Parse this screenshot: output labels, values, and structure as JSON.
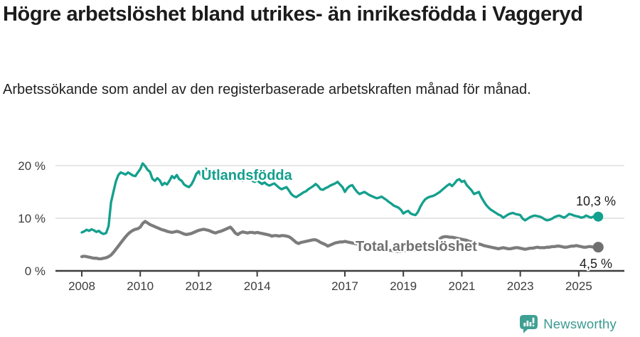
{
  "header": {
    "title": "Högre arbetslöshet bland utrikes- än inrikesfödda i Vaggeryd",
    "subtitle": "Arbetssökande som andel av den registerbaserade arbetskraften månad för månad."
  },
  "chart_data": {
    "type": "line",
    "title": "Högre arbetslöshet bland utrikes- än inrikesfödda i Vaggeryd",
    "xlabel": "",
    "ylabel": "",
    "xlim": [
      2007.1,
      2026.56
    ],
    "ylim": [
      0,
      21.6
    ],
    "grid": "horizontal",
    "legend_position": "inline-labels",
    "y_ticks": [
      {
        "value": 0,
        "label": "0 %"
      },
      {
        "value": 10,
        "label": "10 %"
      },
      {
        "value": 20,
        "label": "20 %"
      }
    ],
    "x_ticks": [
      {
        "value": 2008,
        "label": "2008"
      },
      {
        "value": 2010,
        "label": "2010"
      },
      {
        "value": 2012,
        "label": "2012"
      },
      {
        "value": 2014,
        "label": "2014"
      },
      {
        "value": 2017,
        "label": "2017"
      },
      {
        "value": 2019,
        "label": "2019"
      },
      {
        "value": 2021,
        "label": "2021"
      },
      {
        "value": 2023,
        "label": "2023"
      },
      {
        "value": 2025,
        "label": "2025"
      }
    ],
    "colors": {
      "grid": "#d9d9d9",
      "axis": "#3d3d3d",
      "tick_text": "#3c3c3c",
      "utlandsfodda": "#14a08e",
      "total": "#7c7c7c",
      "total_dot": "#6f6f6f",
      "end_label_text": "#1d1d1d"
    },
    "series": [
      {
        "name": "Utlandsfödda",
        "color": "#14a08e",
        "end_label": "10,3 %",
        "end_value": 10.3,
        "x_start": 2008,
        "x_step_months": 1,
        "values": [
          7.3,
          7.5,
          7.8,
          7.6,
          7.9,
          7.7,
          7.4,
          7.6,
          7.2,
          7.0,
          7.2,
          8.5,
          13.0,
          15.0,
          17.0,
          18.2,
          18.7,
          18.5,
          18.3,
          18.7,
          18.4,
          18.1,
          18.0,
          18.7,
          19.3,
          20.4,
          19.9,
          19.2,
          18.8,
          17.5,
          17.1,
          17.6,
          17.2,
          16.3,
          16.7,
          16.4,
          17.1,
          18.0,
          17.6,
          18.2,
          17.4,
          17.1,
          16.4,
          16.1,
          15.9,
          16.4,
          17.3,
          18.4,
          18.9,
          18.1,
          18.5,
          19.4,
          19.0,
          18.5,
          18.2,
          17.9,
          17.5,
          17.7,
          17.3,
          17.6,
          17.9,
          17.5,
          17.2,
          17.5,
          17.8,
          17.4,
          17.1,
          17.4,
          17.7,
          17.4,
          17.1,
          16.9,
          17.2,
          16.8,
          16.5,
          16.8,
          16.4,
          16.2,
          16.4,
          16.6,
          16.2,
          15.8,
          15.5,
          15.7,
          15.9,
          15.3,
          14.6,
          14.2,
          14.0,
          14.3,
          14.6,
          14.9,
          15.1,
          15.5,
          15.8,
          16.1,
          16.5,
          16.1,
          15.5,
          15.4,
          15.7,
          15.9,
          16.2,
          16.4,
          16.6,
          16.9,
          16.4,
          15.9,
          15.0,
          15.7,
          16.1,
          16.3,
          15.6,
          15.0,
          14.6,
          14.8,
          15.0,
          14.7,
          14.4,
          14.2,
          14.0,
          13.8,
          13.9,
          14.1,
          13.8,
          13.5,
          13.1,
          12.8,
          12.4,
          12.2,
          12.0,
          11.6,
          10.9,
          11.2,
          11.4,
          10.9,
          10.7,
          10.6,
          11.2,
          12.2,
          13.0,
          13.6,
          13.9,
          14.1,
          14.2,
          14.4,
          14.7,
          15.0,
          15.4,
          15.8,
          16.2,
          16.5,
          16.1,
          16.6,
          17.2,
          17.4,
          16.9,
          17.1,
          16.3,
          15.8,
          15.3,
          14.6,
          14.8,
          15.0,
          14.0,
          13.2,
          12.5,
          12.0,
          11.6,
          11.3,
          11.0,
          10.7,
          10.5,
          10.1,
          10.4,
          10.7,
          10.9,
          11.0,
          10.8,
          10.7,
          10.6,
          9.9,
          9.6,
          9.9,
          10.2,
          10.4,
          10.5,
          10.4,
          10.3,
          10.1,
          9.8,
          9.6,
          9.7,
          9.9,
          10.2,
          10.4,
          10.5,
          10.3,
          10.1,
          10.4,
          10.8,
          10.7,
          10.5,
          10.4,
          10.3,
          10.1,
          10.2,
          10.5,
          10.3,
          10.1,
          10.3,
          10.4,
          10.3
        ]
      },
      {
        "name": "Total arbetslöshet",
        "color": "#7c7c7c",
        "end_label": "4,5 %",
        "end_value": 4.5,
        "x_start": 2008,
        "x_step_months": 1,
        "values": [
          2.7,
          2.8,
          2.7,
          2.6,
          2.5,
          2.4,
          2.4,
          2.3,
          2.3,
          2.4,
          2.5,
          2.7,
          3.0,
          3.5,
          4.1,
          4.7,
          5.3,
          5.9,
          6.5,
          7.0,
          7.4,
          7.7,
          7.9,
          8.0,
          8.3,
          9.0,
          9.4,
          9.1,
          8.8,
          8.6,
          8.4,
          8.2,
          8.0,
          7.8,
          7.7,
          7.5,
          7.4,
          7.3,
          7.4,
          7.5,
          7.4,
          7.2,
          7.0,
          6.9,
          7.0,
          7.1,
          7.3,
          7.5,
          7.7,
          7.8,
          7.9,
          7.8,
          7.7,
          7.5,
          7.3,
          7.2,
          7.4,
          7.5,
          7.7,
          7.9,
          8.1,
          8.3,
          7.8,
          7.2,
          6.9,
          7.2,
          7.4,
          7.3,
          7.2,
          7.3,
          7.3,
          7.2,
          7.3,
          7.2,
          7.1,
          7.0,
          6.9,
          6.8,
          6.6,
          6.7,
          6.7,
          6.6,
          6.7,
          6.7,
          6.6,
          6.5,
          6.2,
          5.8,
          5.4,
          5.2,
          5.4,
          5.5,
          5.6,
          5.7,
          5.8,
          5.9,
          5.9,
          5.7,
          5.4,
          5.2,
          5.0,
          4.7,
          4.9,
          5.1,
          5.3,
          5.4,
          5.5,
          5.5,
          5.6,
          5.5,
          5.4,
          5.3,
          5.2,
          5.1,
          5.0,
          4.9,
          4.8,
          4.7,
          4.6,
          4.5,
          4.4,
          4.4,
          4.3,
          4.2,
          4.1,
          4.0,
          3.9,
          3.9,
          3.8,
          3.7,
          3.7,
          3.7,
          3.8,
          3.8,
          3.9,
          3.9,
          3.9,
          4.0,
          4.0,
          4.1,
          4.2,
          4.3,
          4.4,
          4.6,
          4.8,
          5.2,
          5.7,
          6.1,
          6.4,
          6.5,
          6.5,
          6.4,
          6.4,
          6.3,
          6.2,
          6.1,
          6.0,
          5.9,
          5.8,
          5.6,
          5.5,
          5.4,
          5.2,
          5.1,
          5.0,
          4.8,
          4.7,
          4.6,
          4.5,
          4.4,
          4.3,
          4.2,
          4.3,
          4.4,
          4.3,
          4.2,
          4.2,
          4.3,
          4.4,
          4.4,
          4.3,
          4.2,
          4.1,
          4.2,
          4.3,
          4.3,
          4.4,
          4.5,
          4.4,
          4.4,
          4.4,
          4.5,
          4.5,
          4.6,
          4.6,
          4.7,
          4.7,
          4.6,
          4.5,
          4.5,
          4.6,
          4.7,
          4.7,
          4.8,
          4.7,
          4.6,
          4.5,
          4.5,
          4.6,
          4.6,
          4.5,
          4.5,
          4.5
        ]
      }
    ]
  },
  "footer": {
    "brand": "Newsworthy",
    "logo_color": "#3ea093"
  }
}
